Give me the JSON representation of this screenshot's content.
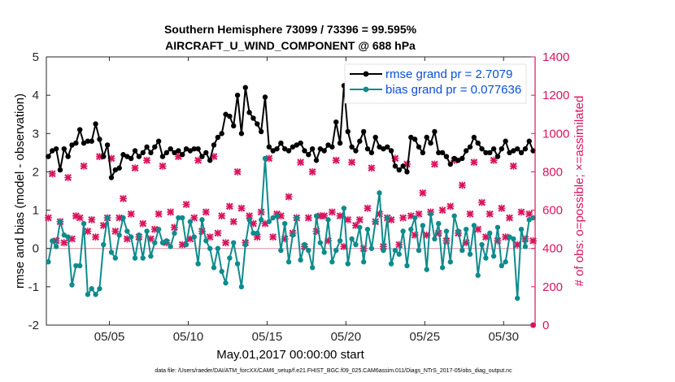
{
  "chart_data": {
    "type": "line",
    "title": "Southern Hemisphere 73099 / 73396 = 99.595%",
    "subtitle": "AIRCRAFT_U_WIND_COMPONENT @ 688 hPa",
    "xlabel": "May.01,2017 00:00:00 start",
    "ylabel": "rmse and bias (model - observation)",
    "y2label": "# of obs: o=possible; ×=assimilated",
    "footnote": "data file: /Users/raeder/DAI/ATM_forcXX/CAM6_setup/f.e21.FHIST_BGC.f09_025.CAM6assim.011/Diags_NTrS_2017-05/obs_diag_output.nc",
    "xlim": [
      1,
      32
    ],
    "ylim": [
      -2,
      5
    ],
    "y2lim": [
      0,
      1400
    ],
    "grid": false,
    "legend_position": "top-right",
    "x_ticks": [
      5,
      10,
      15,
      20,
      25,
      30
    ],
    "x_tick_labels": [
      "05/05",
      "05/10",
      "05/15",
      "05/20",
      "05/25",
      "05/30"
    ],
    "y_ticks": [
      -2,
      -1,
      0,
      1,
      2,
      3,
      4,
      5
    ],
    "y_tick_labels": [
      "-2",
      "-1",
      "0",
      "1",
      "2",
      "3",
      "4",
      "5"
    ],
    "y2_ticks": [
      0,
      200,
      400,
      600,
      800,
      1000,
      1200,
      1400
    ],
    "y2_tick_labels": [
      "0",
      "200",
      "400",
      "600",
      "800",
      "1000",
      "1200",
      "1400"
    ],
    "colors": {
      "rmse": "#000000",
      "bias": "#0f8b8d",
      "obs": "#d9145d",
      "right_axis": "#d9145d",
      "legend_text": "#0b4fd8",
      "zero_line": "#d9a6b3"
    },
    "series": [
      {
        "name": "rmse grand pr = 2.7079",
        "axis": "left",
        "x": [
          1.125,
          1.375,
          1.625,
          1.875,
          2.125,
          2.375,
          2.625,
          2.875,
          3.125,
          3.375,
          3.625,
          3.875,
          4.125,
          4.375,
          4.625,
          4.875,
          5.125,
          5.375,
          5.625,
          5.875,
          6.125,
          6.375,
          6.625,
          6.875,
          7.125,
          7.375,
          7.625,
          7.875,
          8.125,
          8.375,
          8.625,
          8.875,
          9.125,
          9.375,
          9.625,
          9.875,
          10.125,
          10.375,
          10.625,
          10.875,
          11.125,
          11.375,
          11.625,
          11.875,
          12.125,
          12.375,
          12.625,
          12.875,
          13.125,
          13.375,
          13.625,
          13.875,
          14.125,
          14.375,
          14.625,
          14.875,
          15.125,
          15.375,
          15.625,
          15.875,
          16.125,
          16.375,
          16.625,
          16.875,
          17.125,
          17.375,
          17.625,
          17.875,
          18.125,
          18.375,
          18.625,
          18.875,
          19.125,
          19.375,
          19.625,
          19.875,
          20.125,
          20.375,
          20.625,
          20.875,
          21.125,
          21.375,
          21.625,
          21.875,
          22.125,
          22.375,
          22.625,
          22.875,
          23.125,
          23.375,
          23.625,
          23.875,
          24.125,
          24.375,
          24.625,
          24.875,
          25.125,
          25.375,
          25.625,
          25.875,
          26.125,
          26.375,
          26.625,
          26.875,
          27.125,
          27.375,
          27.625,
          27.875,
          28.125,
          28.375,
          28.625,
          28.875,
          29.125,
          29.375,
          29.625,
          29.875,
          30.125,
          30.375,
          30.625,
          30.875,
          31.125,
          31.375,
          31.625,
          31.875
        ],
        "values": [
          2.4,
          2.55,
          2.6,
          2.05,
          2.6,
          2.4,
          2.7,
          2.75,
          3.1,
          2.75,
          2.8,
          2.8,
          3.25,
          2.85,
          2.4,
          2.7,
          1.85,
          2.05,
          2.1,
          2.45,
          2.4,
          2.35,
          2.55,
          2.4,
          2.5,
          2.65,
          2.5,
          2.65,
          2.8,
          2.4,
          2.5,
          2.6,
          2.5,
          2.55,
          2.45,
          2.6,
          2.55,
          2.6,
          2.6,
          2.4,
          2.5,
          2.3,
          2.7,
          2.9,
          3.0,
          3.5,
          3.45,
          3.2,
          4.0,
          3.0,
          4.2,
          3.55,
          3.4,
          3.25,
          3.05,
          3.95,
          2.65,
          2.55,
          2.6,
          2.75,
          2.6,
          2.55,
          2.65,
          2.7,
          2.75,
          2.55,
          2.45,
          2.6,
          2.3,
          2.6,
          2.55,
          2.7,
          2.65,
          3.3,
          2.75,
          4.25,
          3.05,
          2.65,
          2.55,
          2.8,
          3.05,
          2.6,
          2.5,
          2.9,
          2.65,
          2.6,
          2.65,
          2.55,
          2.15,
          2.05,
          2.15,
          2.0,
          2.9,
          2.85,
          2.65,
          2.5,
          2.9,
          2.75,
          3.05,
          2.5,
          2.5,
          2.4,
          2.2,
          2.35,
          2.3,
          2.35,
          2.55,
          2.65,
          2.9,
          2.75,
          2.6,
          2.5,
          2.5,
          2.6,
          2.4,
          2.6,
          2.8,
          2.5,
          2.55,
          2.6,
          2.5,
          2.6,
          2.8,
          2.55
        ],
        "marker": "dot"
      },
      {
        "name": "bias grand pr = 0.077636",
        "axis": "left",
        "x": [
          1.125,
          1.375,
          1.625,
          1.875,
          2.125,
          2.375,
          2.625,
          2.875,
          3.125,
          3.375,
          3.625,
          3.875,
          4.125,
          4.375,
          4.625,
          4.875,
          5.125,
          5.375,
          5.625,
          5.875,
          6.125,
          6.375,
          6.625,
          6.875,
          7.125,
          7.375,
          7.625,
          7.875,
          8.125,
          8.375,
          8.625,
          8.875,
          9.125,
          9.375,
          9.625,
          9.875,
          10.125,
          10.375,
          10.625,
          10.875,
          11.125,
          11.375,
          11.625,
          11.875,
          12.125,
          12.375,
          12.625,
          12.875,
          13.125,
          13.375,
          13.625,
          13.875,
          14.125,
          14.375,
          14.625,
          14.875,
          15.125,
          15.375,
          15.625,
          15.875,
          16.125,
          16.375,
          16.625,
          16.875,
          17.125,
          17.375,
          17.625,
          17.875,
          18.125,
          18.375,
          18.625,
          18.875,
          19.125,
          19.375,
          19.625,
          19.875,
          20.125,
          20.375,
          20.625,
          20.875,
          21.125,
          21.375,
          21.625,
          21.875,
          22.125,
          22.375,
          22.625,
          22.875,
          23.125,
          23.375,
          23.625,
          23.875,
          24.125,
          24.375,
          24.625,
          24.875,
          25.125,
          25.375,
          25.625,
          25.875,
          26.125,
          26.375,
          26.625,
          26.875,
          27.125,
          27.375,
          27.625,
          27.875,
          28.125,
          28.375,
          28.625,
          28.875,
          29.125,
          29.375,
          29.625,
          29.875,
          30.125,
          30.375,
          30.625,
          30.875,
          31.125,
          31.375,
          31.625,
          31.875
        ],
        "values": [
          -0.35,
          0.2,
          0.05,
          0.7,
          0.35,
          0.3,
          -0.95,
          -0.45,
          -0.45,
          0.65,
          -1.2,
          -1.05,
          -1.2,
          -1.05,
          0.1,
          0.8,
          -0.1,
          -0.25,
          0.35,
          0.8,
          0.45,
          0.3,
          -0.25,
          0.35,
          -0.25,
          0.45,
          -0.2,
          0.15,
          0.5,
          0.15,
          0.2,
          0.05,
          0.4,
          0.8,
          0.8,
          0.1,
          0.7,
          0.3,
          -0.4,
          0.75,
          0.2,
          0.0,
          -0.5,
          0.0,
          -0.6,
          -0.9,
          -0.25,
          0.15,
          -0.4,
          -1.0,
          0.1,
          0.75,
          0.4,
          0.4,
          0.75,
          2.35,
          0.7,
          0.8,
          0.85,
          -0.05,
          0.65,
          -0.35,
          0.35,
          0.8,
          -0.3,
          0.1,
          -0.05,
          -0.5,
          0.85,
          0.15,
          -0.1,
          0.75,
          -0.35,
          -0.05,
          0.2,
          1.05,
          -0.4,
          0.25,
          0.1,
          0.55,
          -0.35,
          0.5,
          0.0,
          0.7,
          1.45,
          -0.05,
          0.8,
          -0.4,
          -0.05,
          -0.15,
          0.45,
          -0.45,
          0.5,
          0.8,
          -0.05,
          0.6,
          -0.55,
          0.9,
          0.25,
          0.65,
          -0.5,
          0.45,
          -0.35,
          0.85,
          0.45,
          -0.05,
          0.5,
          -0.15,
          0.6,
          -0.7,
          0.1,
          -0.25,
          0.4,
          -0.2,
          0.55,
          -0.45,
          -0.35,
          0.3,
          0.25,
          -1.3,
          0.5,
          0.05,
          0.75,
          0.8
        ],
        "marker": "dot"
      },
      {
        "name": "obs assimilated",
        "axis": "right",
        "x": [
          1.125,
          1.375,
          1.625,
          1.875,
          2.125,
          2.375,
          2.625,
          2.875,
          3.125,
          3.375,
          3.625,
          3.875,
          4.125,
          4.375,
          4.625,
          4.875,
          5.125,
          5.375,
          5.625,
          5.875,
          6.125,
          6.375,
          6.625,
          6.875,
          7.125,
          7.375,
          7.625,
          7.875,
          8.125,
          8.375,
          8.625,
          8.875,
          9.125,
          9.375,
          9.625,
          9.875,
          10.125,
          10.375,
          10.625,
          10.875,
          11.125,
          11.375,
          11.625,
          11.875,
          12.125,
          12.375,
          12.625,
          12.875,
          13.125,
          13.375,
          13.625,
          13.875,
          14.125,
          14.375,
          14.625,
          14.875,
          15.125,
          15.375,
          15.625,
          15.875,
          16.125,
          16.375,
          16.625,
          16.875,
          17.125,
          17.375,
          17.625,
          17.875,
          18.125,
          18.375,
          18.625,
          18.875,
          19.125,
          19.375,
          19.625,
          19.875,
          20.125,
          20.375,
          20.625,
          20.875,
          21.125,
          21.375,
          21.625,
          21.875,
          22.125,
          22.375,
          22.625,
          22.875,
          23.125,
          23.375,
          23.625,
          23.875,
          24.125,
          24.375,
          24.625,
          24.875,
          25.125,
          25.375,
          25.625,
          25.875,
          26.125,
          26.375,
          26.625,
          26.875,
          27.125,
          27.375,
          27.625,
          27.875,
          28.125,
          28.375,
          28.625,
          28.875,
          29.125,
          29.375,
          29.625,
          29.875,
          30.125,
          30.375,
          30.625,
          30.875,
          31.125,
          31.375,
          31.625,
          31.875
        ],
        "values": [
          560,
          790,
          440,
          540,
          430,
          770,
          450,
          570,
          560,
          830,
          490,
          550,
          460,
          880,
          520,
          560,
          870,
          490,
          560,
          660,
          450,
          580,
          820,
          460,
          530,
          860,
          450,
          500,
          580,
          830,
          430,
          590,
          510,
          880,
          420,
          630,
          450,
          560,
          860,
          490,
          590,
          460,
          880,
          480,
          570,
          430,
          620,
          540,
          800,
          610,
          430,
          570,
          530,
          460,
          590,
          530,
          870,
          460,
          580,
          570,
          450,
          670,
          480,
          560,
          850,
          410,
          560,
          800,
          490,
          570,
          570,
          440,
          590,
          860,
          570,
          410,
          550,
          850,
          520,
          550,
          400,
          610,
          820,
          540,
          580,
          410,
          560,
          550,
          870,
          420,
          560,
          840,
          570,
          470,
          580,
          690,
          470,
          590,
          840,
          480,
          600,
          440,
          620,
          860,
          480,
          730,
          430,
          580,
          850,
          500,
          640,
          460,
          580,
          860,
          440,
          610,
          460,
          560,
          830,
          420,
          590,
          450,
          580,
          440
        ],
        "marker": "x"
      }
    ],
    "annotations": [
      {
        "x": 31.875,
        "y2": 0,
        "text": "trailing zero-count marker"
      }
    ]
  }
}
